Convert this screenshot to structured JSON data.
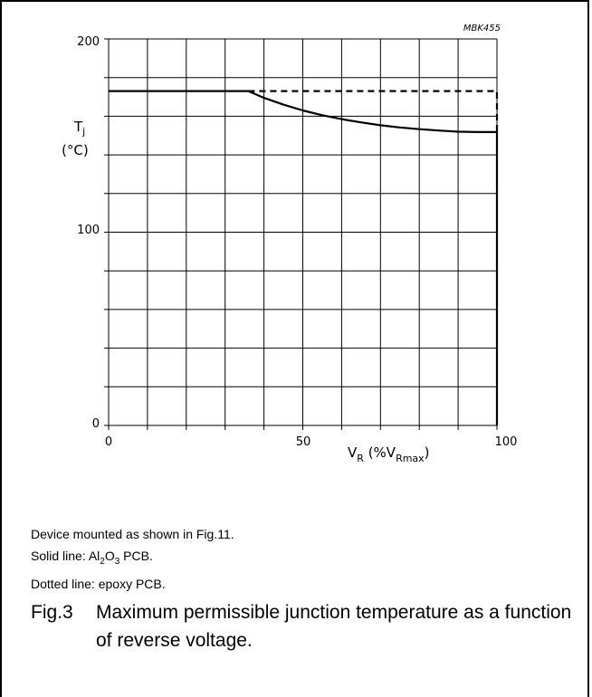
{
  "figure_code": "MBK455",
  "notes": {
    "line1": "Device mounted as shown in Fig.11.",
    "line2_prefix": "Solid line: Al",
    "line2_sub1": "2",
    "line2_mid": "O",
    "line2_sub2": "3",
    "line2_suffix": " PCB.",
    "line3": "Dotted line: epoxy PCB."
  },
  "caption": {
    "number": "Fig.3",
    "text": "Maximum permissible junction temperature as a function of reverse voltage."
  },
  "chart_data": {
    "type": "line",
    "x_ticks": [
      "0",
      "50",
      "100"
    ],
    "y_ticks": [
      "0",
      "100",
      "200"
    ],
    "xlim": [
      0,
      100
    ],
    "ylim": [
      0,
      200
    ],
    "grid": true,
    "ylabel": {
      "main": "T",
      "sub": "j",
      "unit": "(°C)"
    },
    "xlabel": {
      "main": "V",
      "sub1": "R",
      "mid": " (%V",
      "sub2": "Rmax",
      "end": ")"
    },
    "series": [
      {
        "style": "solid",
        "x": [
          0,
          10,
          20,
          30,
          36,
          40,
          45,
          50,
          55,
          60,
          65,
          70,
          75,
          80,
          85,
          90,
          95,
          100,
          100
        ],
        "y": [
          173,
          173,
          173,
          173,
          173,
          169.5,
          166,
          163,
          160.5,
          158.5,
          156.8,
          155.3,
          154.2,
          153.3,
          152.6,
          152,
          151.8,
          151.8,
          0
        ]
      },
      {
        "style": "dashed",
        "x": [
          36,
          50,
          60,
          70,
          80,
          90,
          100,
          100
        ],
        "y": [
          173,
          173,
          173,
          173,
          173,
          173,
          173,
          152
        ]
      }
    ]
  }
}
